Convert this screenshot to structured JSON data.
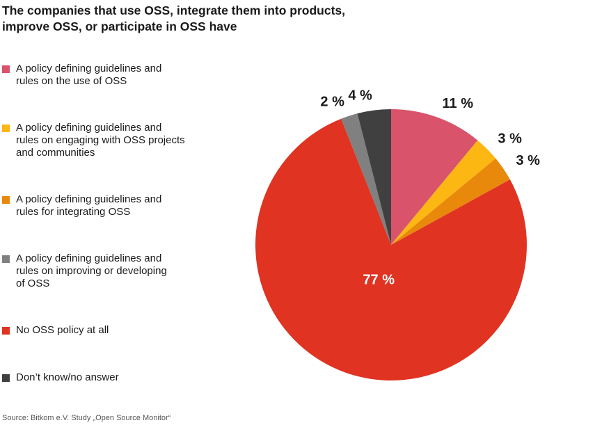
{
  "title_line1": "The companies that use OSS, integrate them into products,",
  "title_line2": "improve OSS, or participate in OSS have",
  "legend": [
    {
      "lines": [
        "A policy defining guidelines and",
        "rules on the use of OSS"
      ],
      "color": "#d9536b"
    },
    {
      "lines": [
        "A policy defining guidelines and",
        "rules on engaging with OSS projects",
        "and communities"
      ],
      "color": "#fdb713"
    },
    {
      "lines": [
        "A policy defining guidelines and",
        "rules for integrating OSS"
      ],
      "color": "#e8890c"
    },
    {
      "lines": [
        "A policy defining guidelines and",
        "rules on improving or developing",
        "of OSS"
      ],
      "color": "#808080"
    },
    {
      "lines": [
        "No OSS policy at all"
      ],
      "color": "#e03322"
    },
    {
      "lines": [
        "Don’t know/no answer"
      ],
      "color": "#404040"
    }
  ],
  "source": "Source: Bitkom e.V. Study „Open Source Monitor“",
  "chart_data": {
    "type": "pie",
    "categories": [
      "A policy defining guidelines and rules on the use of OSS",
      "A policy defining guidelines and rules on engaging with OSS projects and communities",
      "A policy defining guidelines and rules for integrating OSS",
      "No OSS policy at all",
      "A policy defining guidelines and rules on improving or developing of OSS",
      "Don’t know/no answer"
    ],
    "values": [
      11,
      3,
      3,
      77,
      2,
      4
    ],
    "labels": [
      "11 %",
      "3 %",
      "3 %",
      "77 %",
      "2 %",
      "4 %"
    ],
    "colors": [
      "#d9536b",
      "#fdb713",
      "#e8890c",
      "#e03322",
      "#808080",
      "#404040"
    ],
    "label_colors": [
      "#1a1a1a",
      "#1a1a1a",
      "#1a1a1a",
      "#ffffff",
      "#1a1a1a",
      "#1a1a1a"
    ],
    "title": "The companies that use OSS, integrate them into products, improve OSS, or participate in OSS have",
    "start": "12 o'clock",
    "direction": "clockwise"
  }
}
